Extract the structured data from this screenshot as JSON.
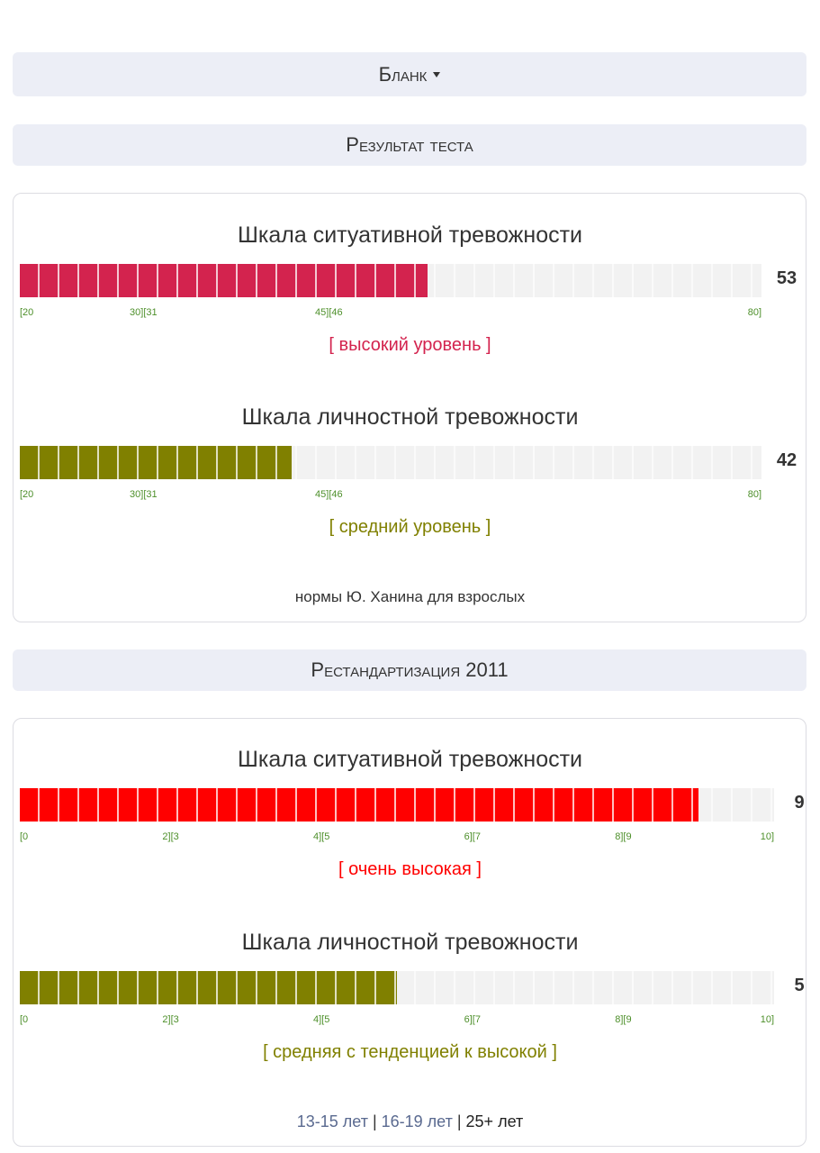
{
  "header": {
    "blank": "Бланк",
    "result_title": "Результат теста"
  },
  "sections": [
    {
      "scales": [
        {
          "title": "Шкала ситуативной тревожности",
          "value": 53,
          "color": "#d3234e",
          "level": "[ высокий уровень ]",
          "ticks": [
            {
              "value": 20,
              "label": "[20"
            },
            {
              "value": 30,
              "label": "30][31"
            },
            {
              "value": 45,
              "label": "45][46"
            },
            {
              "value": 80,
              "label": "80]"
            }
          ]
        },
        {
          "title": "Шкала личностной тревожности",
          "value": 42,
          "color": "#808000",
          "level": "[ средний уровень ]",
          "ticks": [
            {
              "value": 20,
              "label": "[20"
            },
            {
              "value": 30,
              "label": "30][31"
            },
            {
              "value": 45,
              "label": "45][46"
            },
            {
              "value": 80,
              "label": "80]"
            }
          ]
        }
      ],
      "note": "нормы Ю. Ханина для взрослых"
    },
    {
      "heading": "Рестандартизация 2011",
      "scales": [
        {
          "title": "Шкала ситуативной тревожности",
          "value": 9,
          "color": "#ff0000",
          "level": "[ очень высокая ]",
          "ticks": [
            {
              "value": 0,
              "label": "[0"
            },
            {
              "value": 2,
              "label": "2][3"
            },
            {
              "value": 4,
              "label": "4][5"
            },
            {
              "value": 6,
              "label": "6][7"
            },
            {
              "value": 8,
              "label": "8][9"
            },
            {
              "value": 10,
              "label": "10]"
            }
          ]
        },
        {
          "title": "Шкала личностной тревожности",
          "value": 5,
          "color": "#808000",
          "level": "[ средняя с тенденцией к высокой ]",
          "ticks": [
            {
              "value": 0,
              "label": "[0"
            },
            {
              "value": 2,
              "label": "2][3"
            },
            {
              "value": 4,
              "label": "4][5"
            },
            {
              "value": 6,
              "label": "6][7"
            },
            {
              "value": 8,
              "label": "8][9"
            },
            {
              "value": 10,
              "label": "10]"
            }
          ]
        }
      ],
      "age_groups": [
        "13-15 лет",
        "16-19 лет",
        "25+ лет"
      ],
      "separator": "|"
    }
  ]
}
